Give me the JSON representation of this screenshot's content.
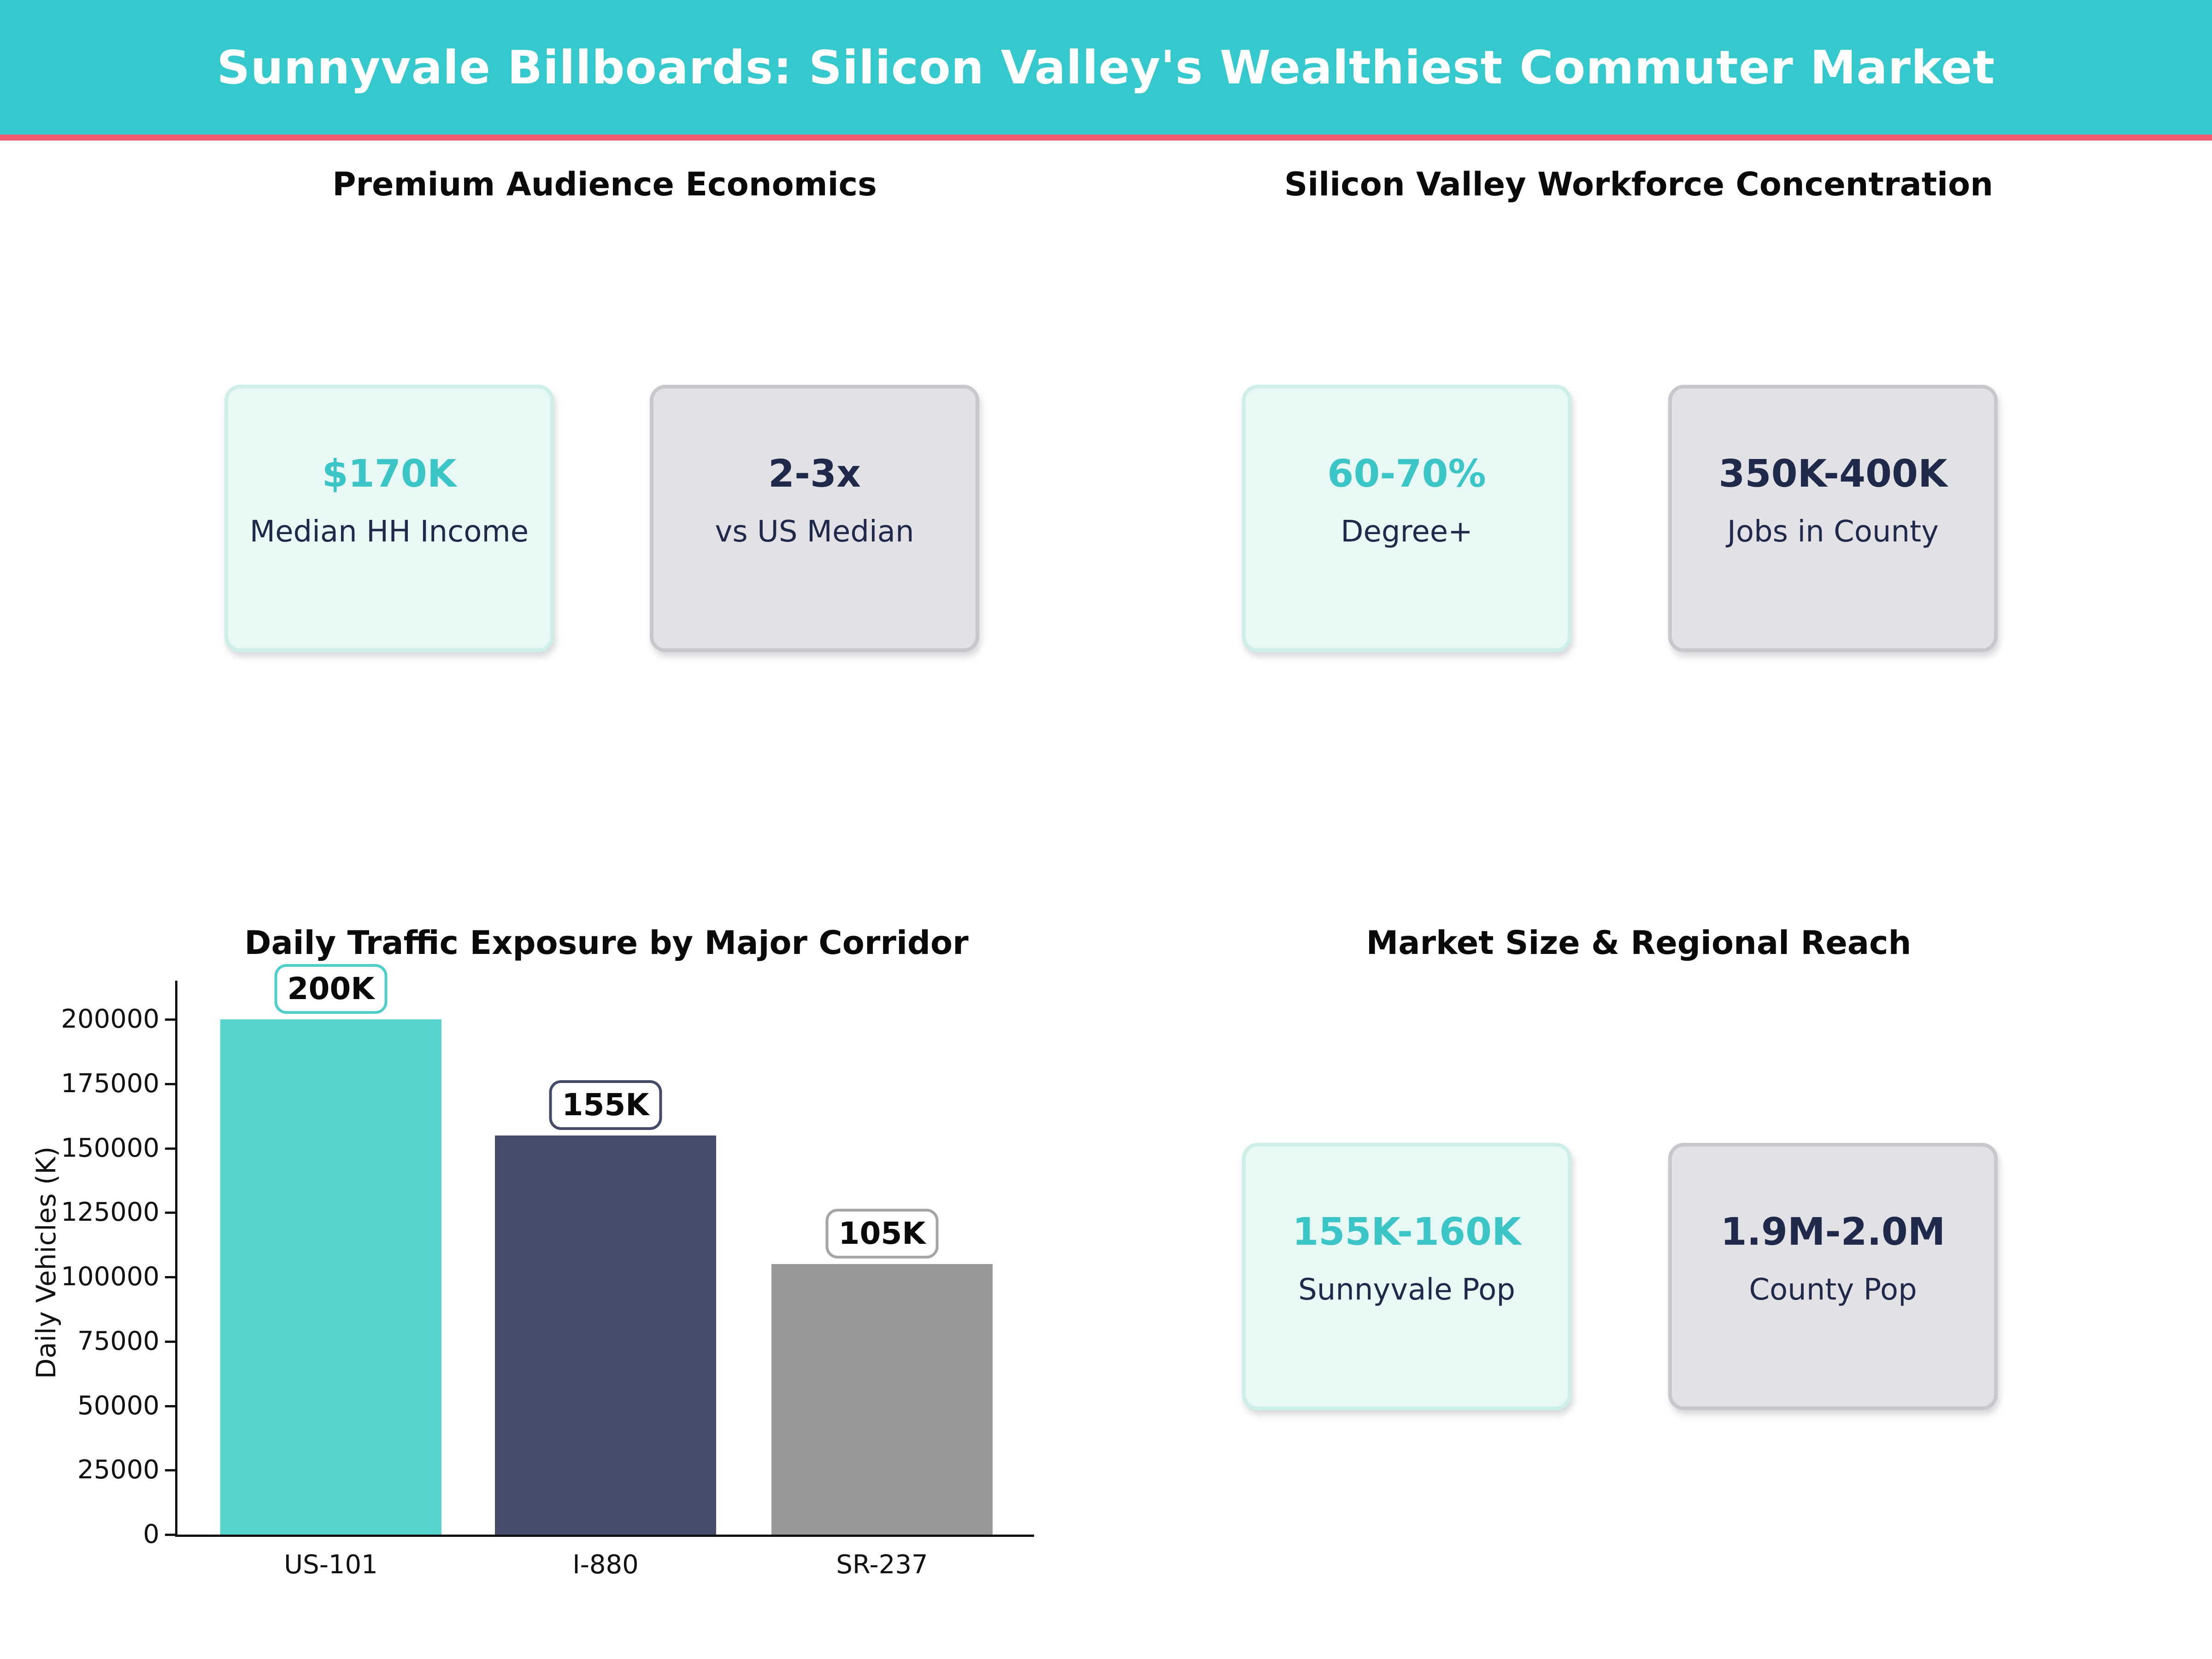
{
  "header": {
    "title": "Sunnyvale Billboards: Silicon Valley's Wealthiest Commuter Market",
    "banner_color": "#35c8cc",
    "accent_line_color": "#ef5a71"
  },
  "sections": {
    "economics": {
      "title": "Premium Audience Economics",
      "cards": [
        {
          "value": "$170K",
          "label": "Median HH Income",
          "theme": "teal"
        },
        {
          "value": "2-3x",
          "label": "vs US Median",
          "theme": "gray"
        }
      ]
    },
    "workforce": {
      "title": "Silicon Valley Workforce Concentration",
      "cards": [
        {
          "value": "60-70%",
          "label": "Degree+",
          "theme": "teal"
        },
        {
          "value": "350K-400K",
          "label": "Jobs in County",
          "theme": "gray"
        }
      ]
    },
    "market": {
      "title": "Market Size & Regional Reach",
      "cards": [
        {
          "value": "155K-160K",
          "label": "Sunnyvale Pop",
          "theme": "teal"
        },
        {
          "value": "1.9M-2.0M",
          "label": "County Pop",
          "theme": "gray"
        }
      ]
    }
  },
  "theme_colors": {
    "teal_card_bg": "#e8f8f5",
    "teal_card_border": "#cdeee9",
    "teal_value_text": "#3bc5c7",
    "gray_card_bg": "#e2e2e6",
    "gray_card_border": "#c7c7cd",
    "navy_text": "#1f2a4a"
  },
  "chart_data": {
    "type": "bar",
    "title": "Daily Traffic Exposure by Major Corridor",
    "categories": [
      "US-101",
      "I-880",
      "SR-237"
    ],
    "values": [
      200000,
      155000,
      105000
    ],
    "bar_labels": [
      "200K",
      "155K",
      "105K"
    ],
    "bar_colors": [
      "#57d4ce",
      "#464d6a",
      "#989898"
    ],
    "label_box_border_colors": [
      "#4fcfc8",
      "#444b66",
      "#a5a5a5"
    ],
    "xlabel": "",
    "ylabel": "Daily Vehicles (K)",
    "yticks": [
      0,
      25000,
      50000,
      75000,
      100000,
      125000,
      150000,
      175000,
      200000
    ],
    "ylim": [
      0,
      215000
    ],
    "grid": false,
    "legend": false
  }
}
